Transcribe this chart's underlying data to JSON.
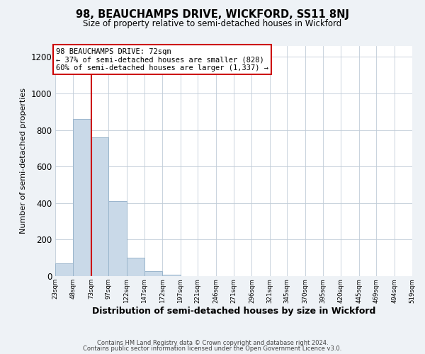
{
  "title": "98, BEAUCHAMPS DRIVE, WICKFORD, SS11 8NJ",
  "subtitle": "Size of property relative to semi-detached houses in Wickford",
  "xlabel": "Distribution of semi-detached houses by size in Wickford",
  "ylabel": "Number of semi-detached properties",
  "bin_edges": [
    23,
    48,
    73,
    97,
    122,
    147,
    172,
    197,
    221,
    246,
    271,
    296,
    321,
    345,
    370,
    395,
    420,
    445,
    469,
    494,
    519
  ],
  "bar_heights": [
    70,
    860,
    760,
    410,
    100,
    28,
    8,
    0,
    0,
    0,
    0,
    0,
    0,
    0,
    0,
    0,
    0,
    0,
    0,
    0
  ],
  "bar_color": "#c9d9e8",
  "bar_edgecolor": "#9ab5cc",
  "property_line_x": 73,
  "property_line_color": "#cc0000",
  "annotation_line1": "98 BEAUCHAMPS DRIVE: 72sqm",
  "annotation_line2": "← 37% of semi-detached houses are smaller (828)",
  "annotation_line3": "60% of semi-detached houses are larger (1,337) →",
  "annotation_box_edgecolor": "#cc0000",
  "annotation_box_facecolor": "#ffffff",
  "ylim": [
    0,
    1260
  ],
  "yticks": [
    0,
    200,
    400,
    600,
    800,
    1000,
    1200
  ],
  "tick_labels": [
    "23sqm",
    "48sqm",
    "73sqm",
    "97sqm",
    "122sqm",
    "147sqm",
    "172sqm",
    "197sqm",
    "221sqm",
    "246sqm",
    "271sqm",
    "296sqm",
    "321sqm",
    "345sqm",
    "370sqm",
    "395sqm",
    "420sqm",
    "445sqm",
    "469sqm",
    "494sqm",
    "519sqm"
  ],
  "footer1": "Contains HM Land Registry data © Crown copyright and database right 2024.",
  "footer2": "Contains public sector information licensed under the Open Government Licence v3.0.",
  "background_color": "#eef2f6",
  "plot_background_color": "#ffffff",
  "grid_color": "#c0ccd8"
}
